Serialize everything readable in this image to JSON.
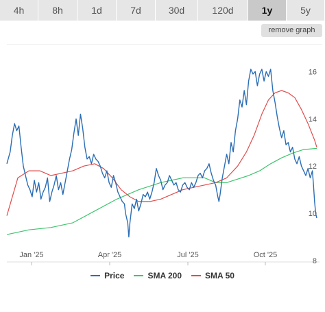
{
  "timeframes": [
    "4h",
    "8h",
    "1d",
    "7d",
    "30d",
    "120d",
    "1y",
    "5y"
  ],
  "active_timeframe": "1y",
  "remove_graph_label": "remove graph",
  "chart_data": {
    "type": "line",
    "x_ticks": [
      "Jan '25",
      "Apr '25",
      "Jul '25",
      "Oct '25"
    ],
    "y_ticks": [
      8,
      10,
      12,
      14,
      16
    ],
    "ylim": [
      8,
      17
    ],
    "grid": false,
    "legend_position": "bottom",
    "series": [
      {
        "name": "Price",
        "color": "#2a6db5",
        "points": [
          [
            0,
            12.1
          ],
          [
            3,
            12.6
          ],
          [
            5,
            13.3
          ],
          [
            7,
            13.8
          ],
          [
            9,
            13.5
          ],
          [
            11,
            13.7
          ],
          [
            13,
            12.8
          ],
          [
            15,
            12.0
          ],
          [
            17,
            11.6
          ],
          [
            19,
            11.2
          ],
          [
            21,
            11.0
          ],
          [
            23,
            10.7
          ],
          [
            25,
            11.4
          ],
          [
            27,
            10.9
          ],
          [
            29,
            11.3
          ],
          [
            31,
            10.6
          ],
          [
            33,
            10.9
          ],
          [
            35,
            11.1
          ],
          [
            37,
            11.5
          ],
          [
            39,
            10.5
          ],
          [
            41,
            10.9
          ],
          [
            43,
            11.2
          ],
          [
            45,
            11.6
          ],
          [
            47,
            11.0
          ],
          [
            49,
            11.3
          ],
          [
            51,
            10.8
          ],
          [
            53,
            11.3
          ],
          [
            55,
            11.8
          ],
          [
            57,
            12.3
          ],
          [
            59,
            12.7
          ],
          [
            61,
            13.4
          ],
          [
            63,
            14.0
          ],
          [
            65,
            13.3
          ],
          [
            67,
            14.2
          ],
          [
            69,
            13.6
          ],
          [
            71,
            12.8
          ],
          [
            73,
            12.3
          ],
          [
            75,
            12.4
          ],
          [
            77,
            12.1
          ],
          [
            79,
            12.5
          ],
          [
            81,
            12.3
          ],
          [
            83,
            12.2
          ],
          [
            85,
            12.0
          ],
          [
            87,
            11.7
          ],
          [
            89,
            11.5
          ],
          [
            91,
            11.8
          ],
          [
            93,
            11.3
          ],
          [
            95,
            11.1
          ],
          [
            97,
            11.6
          ],
          [
            99,
            11.3
          ],
          [
            101,
            10.9
          ],
          [
            103,
            10.7
          ],
          [
            105,
            10.5
          ],
          [
            107,
            10.4
          ],
          [
            108,
            10.0
          ],
          [
            110,
            9.6
          ],
          [
            111,
            9.0
          ],
          [
            112,
            9.6
          ],
          [
            114,
            10.4
          ],
          [
            116,
            10.2
          ],
          [
            118,
            10.6
          ],
          [
            120,
            10.1
          ],
          [
            122,
            10.4
          ],
          [
            124,
            10.8
          ],
          [
            126,
            10.7
          ],
          [
            128,
            10.9
          ],
          [
            130,
            10.6
          ],
          [
            132,
            10.9
          ],
          [
            134,
            11.3
          ],
          [
            136,
            11.9
          ],
          [
            138,
            11.6
          ],
          [
            140,
            11.4
          ],
          [
            142,
            11.0
          ],
          [
            144,
            11.2
          ],
          [
            146,
            11.3
          ],
          [
            148,
            11.6
          ],
          [
            150,
            11.4
          ],
          [
            152,
            11.2
          ],
          [
            154,
            11.3
          ],
          [
            156,
            11.0
          ],
          [
            158,
            10.9
          ],
          [
            160,
            11.2
          ],
          [
            162,
            11.3
          ],
          [
            164,
            11.1
          ],
          [
            166,
            11.0
          ],
          [
            168,
            11.3
          ],
          [
            170,
            11.1
          ],
          [
            172,
            11.3
          ],
          [
            174,
            11.6
          ],
          [
            176,
            11.7
          ],
          [
            178,
            11.5
          ],
          [
            180,
            11.8
          ],
          [
            182,
            11.9
          ],
          [
            184,
            12.1
          ],
          [
            186,
            11.7
          ],
          [
            188,
            11.4
          ],
          [
            190,
            11.2
          ],
          [
            192,
            10.7
          ],
          [
            193,
            10.5
          ],
          [
            194,
            10.8
          ],
          [
            196,
            11.5
          ],
          [
            198,
            12.0
          ],
          [
            200,
            12.5
          ],
          [
            202,
            12.1
          ],
          [
            204,
            13.0
          ],
          [
            206,
            12.6
          ],
          [
            208,
            13.5
          ],
          [
            210,
            14.0
          ],
          [
            212,
            14.8
          ],
          [
            214,
            14.5
          ],
          [
            216,
            15.2
          ],
          [
            218,
            14.6
          ],
          [
            220,
            15.6
          ],
          [
            222,
            16.1
          ],
          [
            224,
            15.9
          ],
          [
            226,
            16.0
          ],
          [
            228,
            15.4
          ],
          [
            230,
            15.9
          ],
          [
            232,
            16.1
          ],
          [
            234,
            15.6
          ],
          [
            236,
            16.0
          ],
          [
            238,
            15.8
          ],
          [
            240,
            16.1
          ],
          [
            242,
            15.2
          ],
          [
            244,
            14.7
          ],
          [
            246,
            14.1
          ],
          [
            248,
            13.6
          ],
          [
            250,
            13.2
          ],
          [
            252,
            13.5
          ],
          [
            254,
            12.9
          ],
          [
            256,
            13.0
          ],
          [
            258,
            12.6
          ],
          [
            260,
            12.8
          ],
          [
            262,
            12.3
          ],
          [
            264,
            12.1
          ],
          [
            266,
            12.4
          ],
          [
            268,
            12.0
          ],
          [
            270,
            11.8
          ],
          [
            272,
            11.6
          ],
          [
            274,
            11.9
          ],
          [
            276,
            11.5
          ],
          [
            278,
            11.8
          ],
          [
            279,
            11.2
          ],
          [
            280,
            10.5
          ],
          [
            281,
            10.0
          ],
          [
            282,
            9.8
          ]
        ]
      },
      {
        "name": "SMA 200",
        "color": "#3ec46d",
        "points": [
          [
            0,
            9.1
          ],
          [
            20,
            9.3
          ],
          [
            40,
            9.4
          ],
          [
            60,
            9.6
          ],
          [
            80,
            10.1
          ],
          [
            100,
            10.6
          ],
          [
            120,
            11.0
          ],
          [
            140,
            11.3
          ],
          [
            160,
            11.5
          ],
          [
            180,
            11.5
          ],
          [
            190,
            11.3
          ],
          [
            200,
            11.3
          ],
          [
            210,
            11.45
          ],
          [
            220,
            11.6
          ],
          [
            230,
            11.8
          ],
          [
            240,
            12.1
          ],
          [
            250,
            12.35
          ],
          [
            260,
            12.55
          ],
          [
            270,
            12.7
          ],
          [
            282,
            12.75
          ]
        ]
      },
      {
        "name": "SMA 50",
        "color": "#e14b4b",
        "points": [
          [
            0,
            9.9
          ],
          [
            10,
            11.5
          ],
          [
            20,
            11.8
          ],
          [
            30,
            11.8
          ],
          [
            40,
            11.6
          ],
          [
            50,
            11.7
          ],
          [
            60,
            11.8
          ],
          [
            70,
            12.0
          ],
          [
            80,
            12.1
          ],
          [
            88,
            11.9
          ],
          [
            96,
            11.5
          ],
          [
            104,
            11.0
          ],
          [
            112,
            10.7
          ],
          [
            120,
            10.5
          ],
          [
            130,
            10.5
          ],
          [
            140,
            10.6
          ],
          [
            150,
            10.8
          ],
          [
            160,
            11.0
          ],
          [
            170,
            11.1
          ],
          [
            180,
            11.2
          ],
          [
            190,
            11.3
          ],
          [
            200,
            11.5
          ],
          [
            210,
            12.0
          ],
          [
            218,
            12.6
          ],
          [
            225,
            13.3
          ],
          [
            232,
            14.2
          ],
          [
            238,
            14.8
          ],
          [
            244,
            15.1
          ],
          [
            250,
            15.2
          ],
          [
            256,
            15.1
          ],
          [
            262,
            14.9
          ],
          [
            268,
            14.4
          ],
          [
            274,
            13.8
          ],
          [
            280,
            13.1
          ],
          [
            282,
            12.8
          ]
        ]
      }
    ]
  }
}
